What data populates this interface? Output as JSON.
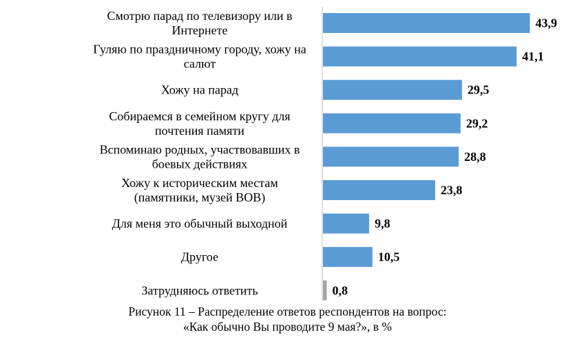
{
  "chart_data": {
    "type": "bar",
    "orientation": "horizontal",
    "categories": [
      [
        "Смотрю парад по телевизору или в",
        "Интернете"
      ],
      [
        "Гуляю по праздничному городу, хожу на",
        "салют"
      ],
      [
        "Хожу на парад"
      ],
      [
        "Собираемся в семейном кругу для",
        "почтения памяти"
      ],
      [
        "Вспоминаю родных, участвовавших в",
        "боевых действиях"
      ],
      [
        "Хожу к историческим местам",
        "(памятники, музей ВОВ)"
      ],
      [
        "Для меня это обычный выходной"
      ],
      [
        "Другое"
      ],
      [
        "Затрудняюсь ответить"
      ]
    ],
    "values": [
      43.9,
      41.1,
      29.5,
      29.2,
      28.8,
      23.8,
      9.8,
      10.5,
      0.8
    ],
    "value_labels": [
      "43,9",
      "41,1",
      "29,5",
      "29,2",
      "28,8",
      "23,8",
      "9,8",
      "10,5",
      "0,8"
    ],
    "bar_colors": [
      "#5b9bd5",
      "#5b9bd5",
      "#5b9bd5",
      "#5b9bd5",
      "#5b9bd5",
      "#5b9bd5",
      "#5b9bd5",
      "#5b9bd5",
      "#a6a6a6"
    ],
    "xlim": [
      0,
      45
    ],
    "grid": false,
    "legend": "none",
    "title": "",
    "xlabel": "",
    "ylabel": ""
  },
  "caption": {
    "line1": "Рисунок 11 – Распределение ответов респондентов на вопрос:",
    "line2": "«Как обычно Вы проводите 9 мая?», в %"
  },
  "colors": {
    "bar": "#5b9bd5",
    "bar_muted": "#a6a6a6",
    "axis": "#bfbfbf"
  }
}
